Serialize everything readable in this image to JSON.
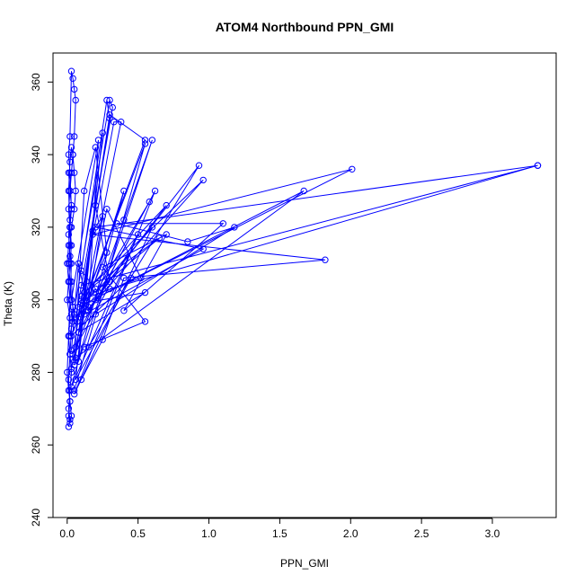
{
  "chart_data": {
    "type": "line",
    "title": "ATOM4 Northbound PPN_GMI",
    "xlabel": "PPN_GMI",
    "ylabel": "Theta (K)",
    "xlim": [
      -0.1,
      3.45
    ],
    "ylim": [
      240,
      368
    ],
    "x_ticks": [
      "0.0",
      "0.5",
      "1.0",
      "1.5",
      "2.0",
      "2.5",
      "3.0"
    ],
    "x_tick_values": [
      0,
      0.5,
      1.0,
      1.5,
      2.0,
      2.5,
      3.0
    ],
    "y_ticks": [
      "240",
      "260",
      "280",
      "300",
      "320",
      "340",
      "360"
    ],
    "y_tick_values": [
      240,
      260,
      280,
      300,
      320,
      340,
      360
    ],
    "grid": false,
    "line_color": "#0000ff",
    "marker": "open-circle",
    "series": [
      {
        "x": [
          0.01,
          0.02,
          0.01,
          0.02,
          0.03,
          0.02,
          0.01,
          0.02,
          0.0,
          0.01,
          0.02,
          0.03,
          0.02,
          0.01,
          0.02,
          0.03,
          0.04,
          0.05,
          0.06,
          0.05,
          0.04,
          0.03,
          0.02,
          0.01,
          0.02,
          0.03,
          0.02,
          0.01,
          0.0,
          0.01,
          0.02,
          0.03,
          0.04,
          0.05,
          0.04,
          0.03,
          0.02,
          0.01,
          0.02,
          0.03,
          0.05,
          0.06,
          0.05,
          0.04,
          0.03,
          0.02,
          0.01,
          0.02,
          0.03,
          0.02,
          0.01,
          0.0,
          0.01,
          0.02,
          0.01,
          0.02,
          0.03,
          0.02,
          0.01,
          0.02,
          0.03,
          0.04,
          0.03,
          0.02,
          0.01,
          0.02,
          0.03,
          0.02,
          0.01
        ],
        "y": [
          265,
          267,
          270,
          275,
          280,
          285,
          290,
          295,
          300,
          305,
          310,
          315,
          320,
          325,
          330,
          335,
          340,
          345,
          355,
          358,
          361,
          363,
          345,
          340,
          335,
          325,
          320,
          315,
          310,
          305,
          300,
          296,
          294,
          296,
          298,
          300,
          305,
          310,
          315,
          320,
          325,
          330,
          335,
          340,
          342,
          338,
          330,
          320,
          310,
          300,
          290,
          280,
          275,
          272,
          268,
          266,
          268,
          272,
          278,
          285,
          292,
          298,
          305,
          312,
          318,
          322,
          326,
          330,
          335
        ]
      },
      {
        "x": [
          0.03,
          0.22,
          0.15,
          0.25,
          0.18,
          0.1,
          0.28,
          0.2,
          0.12,
          0.05,
          0.2,
          0.3,
          0.22,
          0.15,
          0.08,
          0.03
        ],
        "y": [
          300,
          344,
          298,
          323,
          319,
          296,
          313,
          342,
          330,
          282,
          326,
          305,
          301,
          297,
          310,
          286
        ]
      },
      {
        "x": [
          0.05,
          0.55,
          0.03,
          0.45,
          0.06,
          0.25,
          0.08,
          0.6,
          0.4,
          0.2,
          0.06,
          0.5,
          0.03,
          0.4,
          0.08
        ],
        "y": [
          275,
          343,
          290,
          306,
          278,
          346,
          283,
          344,
          322,
          300,
          287,
          318,
          276,
          330,
          291
        ]
      },
      {
        "x": [
          0.02,
          0.3,
          0.32,
          0.06,
          0.2,
          0.1,
          0.28,
          0.3,
          0.04
        ],
        "y": [
          290,
          355,
          353,
          295,
          303,
          308,
          355,
          350,
          285
        ]
      },
      {
        "x": [
          0.03,
          0.38,
          0.33,
          0.07,
          0.55,
          0.3,
          0.1,
          0.52,
          0.28,
          0.05
        ],
        "y": [
          281,
          349,
          349,
          294,
          344,
          351,
          300,
          306,
          325,
          283
        ]
      },
      {
        "x": [
          0.15,
          0.93,
          0.25,
          0.62,
          0.05,
          0.6,
          0.2,
          0.58,
          0.08
        ],
        "y": [
          287,
          337,
          303,
          330,
          274,
          320,
          302,
          327,
          291
        ]
      },
      {
        "x": [
          0.1,
          0.7,
          0.14,
          0.96,
          0.12,
          0.65,
          0.1,
          0.55,
          0.08
        ],
        "y": [
          301,
          326,
          297,
          333,
          302,
          317,
          299,
          302,
          291
        ]
      },
      {
        "x": [
          0.2,
          1.18,
          0.85,
          0.35,
          1.1,
          0.4,
          0.7,
          0.25,
          0.55,
          0.12
        ],
        "y": [
          296,
          320,
          316,
          321,
          321,
          297,
          318,
          309,
          294,
          287
        ]
      },
      {
        "x": [
          0.06,
          1.67,
          0.08,
          2.01,
          0.18,
          1.82,
          0.4,
          0.25,
          0.1
        ],
        "y": [
          284,
          330,
          298,
          336,
          318,
          311,
          306,
          289,
          278
        ]
      },
      {
        "x": [
          0.1,
          3.32,
          0.3,
          3.32,
          0.2,
          0.96,
          0.12
        ],
        "y": [
          304,
          337,
          303,
          337,
          320,
          314,
          296
        ]
      }
    ]
  }
}
